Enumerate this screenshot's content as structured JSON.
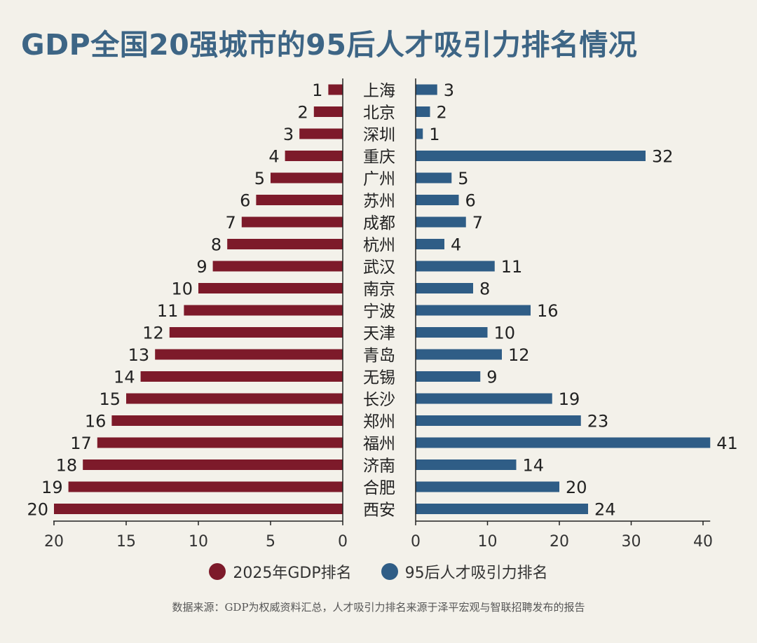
{
  "title": "GDP全国20强城市的95后人才吸引力排名情况",
  "chart_data": {
    "type": "bar",
    "layout": "butterfly",
    "categories": [
      "上海",
      "北京",
      "深圳",
      "重庆",
      "广州",
      "苏州",
      "成都",
      "杭州",
      "武汉",
      "南京",
      "宁波",
      "天津",
      "青岛",
      "无锡",
      "长沙",
      "郑州",
      "福州",
      "济南",
      "合肥",
      "西安"
    ],
    "series": [
      {
        "name": "2025年GDP排名",
        "color": "#7d1a2a",
        "values": [
          1,
          2,
          3,
          4,
          5,
          6,
          7,
          8,
          9,
          10,
          11,
          12,
          13,
          14,
          15,
          16,
          17,
          18,
          19,
          20
        ]
      },
      {
        "name": "95后人才吸引力排名",
        "color": "#2f5d86",
        "values": [
          3,
          2,
          1,
          32,
          5,
          6,
          7,
          4,
          11,
          8,
          16,
          10,
          12,
          9,
          19,
          23,
          41,
          14,
          20,
          24
        ]
      }
    ],
    "left_axis": {
      "range": [
        20,
        0
      ],
      "ticks": [
        20,
        15,
        10,
        5,
        0
      ]
    },
    "right_axis": {
      "range": [
        0,
        40
      ],
      "ticks": [
        0,
        10,
        20,
        30,
        40
      ]
    },
    "legend_position": "bottom"
  },
  "source": "数据来源：GDP为权威资料汇总，人才吸引力排名来源于泽平宏观与智联招聘发布的报告"
}
